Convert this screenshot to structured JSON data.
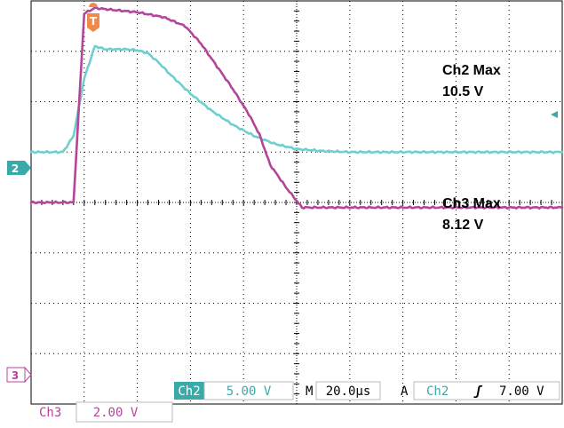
{
  "chart_data": {
    "type": "line",
    "title": "",
    "xlabel": "",
    "ylabel": "",
    "grid": true,
    "x_units": "µs",
    "xlim": [
      -20,
      180
    ],
    "series": [
      {
        "name": "Ch2",
        "color": "#6fcfcf",
        "scale_v_per_div": 5.0,
        "offset_div": 1.0,
        "x": [
          -20,
          -8,
          -4,
          0,
          4,
          8,
          12,
          16,
          20,
          24,
          28,
          32,
          40,
          48,
          56,
          64,
          72,
          80,
          90,
          100,
          180
        ],
        "y": [
          0,
          0,
          1.6,
          7.3,
          10.5,
          10.2,
          10.2,
          10.2,
          10.1,
          9.8,
          8.9,
          7.8,
          5.8,
          4.1,
          2.7,
          1.6,
          0.8,
          0.3,
          0.1,
          0,
          0
        ]
      },
      {
        "name": "Ch3",
        "color": "#b5459b",
        "scale_v_per_div": 2.0,
        "offset_div": -0.2,
        "x": [
          -20,
          -8,
          -4,
          0,
          4,
          10,
          20,
          30,
          38,
          44,
          50,
          56,
          62,
          66,
          70,
          76,
          82,
          180
        ],
        "y": [
          0.4,
          0.4,
          0.4,
          7.9,
          8.12,
          8.05,
          7.95,
          7.75,
          7.4,
          6.7,
          5.8,
          4.9,
          3.9,
          3.1,
          1.9,
          1.0,
          0.2,
          0.2
        ]
      }
    ],
    "annotations": [
      {
        "series": "Ch2",
        "label": "Ch2 Max",
        "value": "10.5 V"
      },
      {
        "series": "Ch3",
        "label": "Ch3 Max",
        "value": "8.12 V"
      }
    ],
    "markers": {
      "trigger": "T",
      "ch2": "2",
      "ch3": "3"
    },
    "status": {
      "ch2_label": "Ch2",
      "ch2_scale": "5.00 V",
      "timebase_prefix": "M",
      "timebase": "20.0µs",
      "trigger_prefix": "A",
      "trigger_source": "Ch2",
      "trigger_slope": "ʃ",
      "trigger_level": "7.00 V",
      "ch3_label": "Ch3",
      "ch3_scale": "2.00 V"
    }
  }
}
